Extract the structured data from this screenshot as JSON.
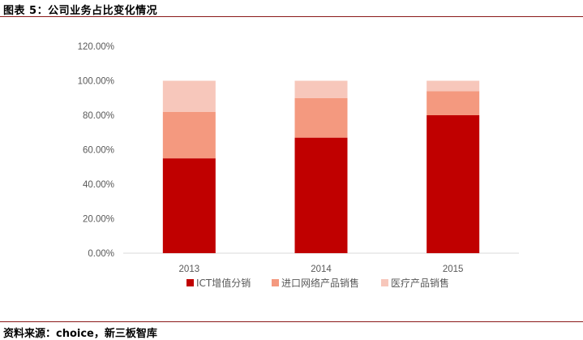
{
  "figure_title": "图表 5：公司业务占比变化情况",
  "source": "资料来源：choice，新三板智库",
  "chart_data": {
    "type": "bar",
    "stacked": true,
    "categories": [
      "2013",
      "2014",
      "2015"
    ],
    "series": [
      {
        "name": "ICT增值分销",
        "values": [
          55,
          67,
          80
        ],
        "color": "#c00000"
      },
      {
        "name": "进口网络产品销售",
        "values": [
          27,
          23,
          14
        ],
        "color": "#f4997f"
      },
      {
        "name": "医疗产品销售",
        "values": [
          18,
          10,
          6
        ],
        "color": "#f7c7bb"
      }
    ],
    "y_ticks": [
      "0.00%",
      "20.00%",
      "40.00%",
      "60.00%",
      "80.00%",
      "100.00%",
      "120.00%"
    ],
    "ylim": [
      0,
      120
    ],
    "legend_position": "bottom",
    "grid": false
  }
}
